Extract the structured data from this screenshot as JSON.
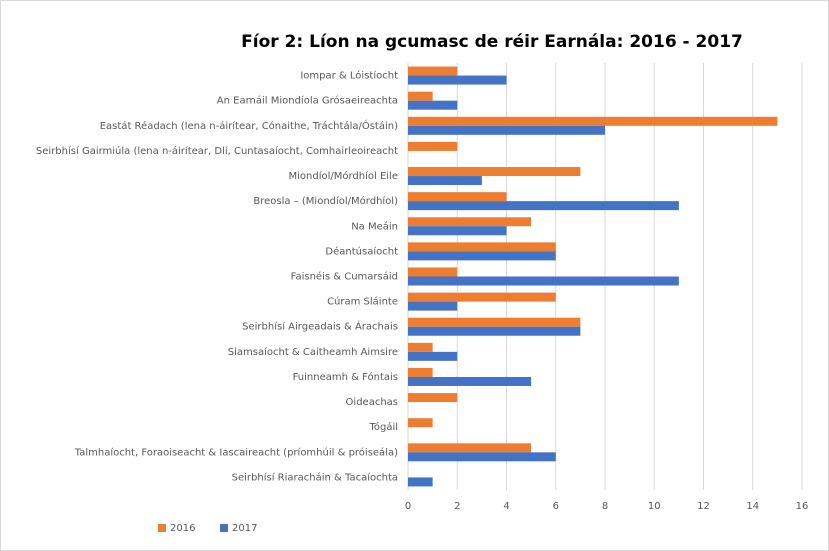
{
  "chart_data": {
    "type": "hbar",
    "title": "Fíor 2: Líon na gcumasc de réir Earnála: 2016 - 2017",
    "categories": [
      "Iompar & Lóistíocht",
      "An Earnáil Miondíola Grósaeireachta",
      "Eastát Réadach (lena n-áirítear, Cónaithe, Tráchtála/Óstáin)",
      "Seirbhísí Gairmiúla (lena n-áirítear, Dlí, Cuntasaíocht, Comhairleoireacht",
      "Miondíol/Mórdhíol Eile",
      "Breosla – (Miondíol/Mórdhíol)",
      "Na Meáin",
      "Déantúsaíocht",
      "Faisnéis & Cumarsáid",
      "Cúram Sláinte",
      "Seirbhísí Airgeadais & Árachais",
      "Siamsaíocht & Caitheamh Aimsire",
      "Fuinneamh & Fóntais",
      "Oideachas",
      "Tógáil",
      "Talmhaíocht, Foraoiseacht & Iascaireacht (príomhúil & próiseála)",
      "Seirbhísí Riaracháin & Tacaíochta"
    ],
    "series": [
      {
        "name": "2016",
        "color": "#ed7d31",
        "values": [
          2,
          1,
          15,
          2,
          7,
          4,
          5,
          6,
          2,
          6,
          7,
          1,
          1,
          2,
          1,
          5,
          0
        ]
      },
      {
        "name": "2017",
        "color": "#4472c4",
        "values": [
          4,
          2,
          8,
          0,
          3,
          11,
          4,
          6,
          11,
          2,
          7,
          2,
          5,
          0,
          0,
          6,
          1
        ]
      }
    ],
    "xlim": [
      0,
      16
    ],
    "xticks": [
      0,
      2,
      4,
      6,
      8,
      10,
      12,
      14,
      16
    ],
    "grid": true,
    "legend": "bottom-left"
  }
}
